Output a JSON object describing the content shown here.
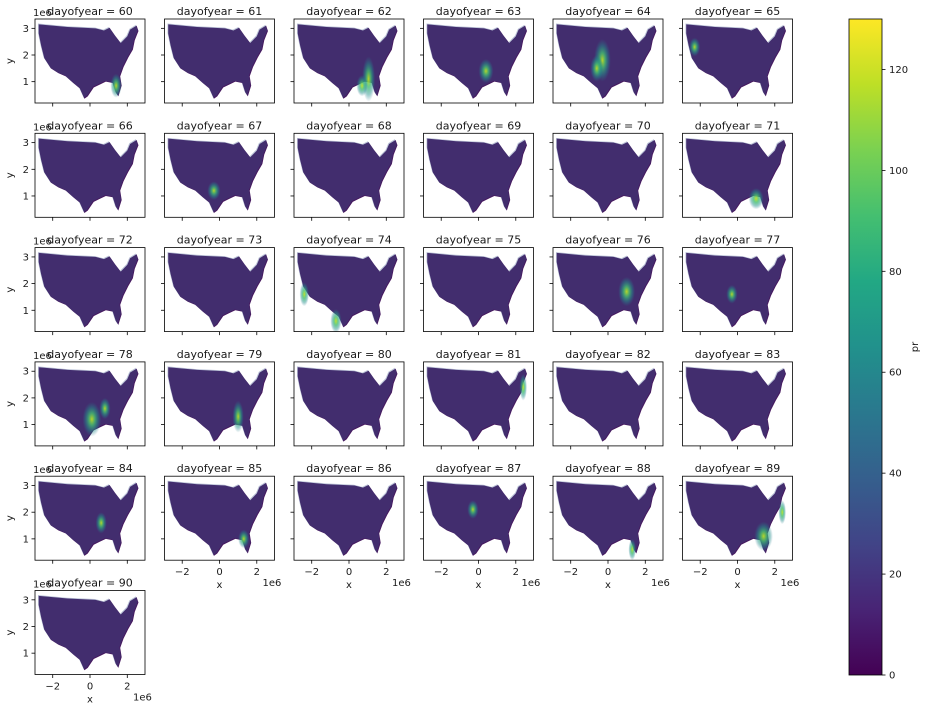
{
  "chart_data": {
    "type": "heatmap",
    "facet_variable": "dayofyear",
    "facet_title_format": "dayofyear = {v}",
    "panels": [
      60,
      61,
      62,
      63,
      64,
      65,
      66,
      67,
      68,
      69,
      70,
      71,
      72,
      73,
      74,
      75,
      76,
      77,
      78,
      79,
      80,
      81,
      82,
      83,
      84,
      85,
      86,
      87,
      88,
      89,
      90
    ],
    "columns": 6,
    "xlabel": "x",
    "ylabel": "y",
    "x_ticks": [
      -2,
      0,
      2
    ],
    "x_offset_label": "1e6",
    "x_range": [
      -2.95,
      2.95
    ],
    "y_ticks": [
      1,
      2,
      3
    ],
    "y_offset_label": "1e6",
    "y_range": [
      0.2,
      3.35
    ],
    "colorbar": {
      "label": "pr",
      "range": [
        0,
        130
      ],
      "ticks": [
        0,
        20,
        40,
        60,
        80,
        100,
        120
      ],
      "colormap": "viridis"
    },
    "highlights": {
      "60": [
        [
          1.4,
          0.85,
          0.3,
          0.45
        ]
      ],
      "62": [
        [
          1.05,
          1.1,
          0.35,
          0.85
        ],
        [
          0.7,
          0.85,
          0.3,
          0.4
        ]
      ],
      "63": [
        [
          0.4,
          1.4,
          0.4,
          0.45
        ]
      ],
      "64": [
        [
          -0.3,
          1.8,
          0.45,
          0.8
        ],
        [
          -0.6,
          1.5,
          0.35,
          0.5
        ]
      ],
      "65": [
        [
          -2.3,
          2.3,
          0.3,
          0.35
        ]
      ],
      "67": [
        [
          -0.3,
          1.2,
          0.35,
          0.35
        ]
      ],
      "71": [
        [
          1.0,
          0.9,
          0.4,
          0.4
        ]
      ],
      "74": [
        [
          -2.4,
          1.6,
          0.25,
          0.45
        ],
        [
          -0.7,
          0.6,
          0.3,
          0.45
        ]
      ],
      "76": [
        [
          1.0,
          1.7,
          0.45,
          0.55
        ]
      ],
      "77": [
        [
          -0.3,
          1.6,
          0.3,
          0.35
        ]
      ],
      "78": [
        [
          0.1,
          1.2,
          0.5,
          0.65
        ],
        [
          0.8,
          1.6,
          0.3,
          0.4
        ]
      ],
      "79": [
        [
          1.0,
          1.3,
          0.3,
          0.6
        ]
      ],
      "81": [
        [
          2.4,
          2.4,
          0.2,
          0.5
        ]
      ],
      "84": [
        [
          0.6,
          1.6,
          0.3,
          0.4
        ]
      ],
      "85": [
        [
          1.3,
          1.0,
          0.3,
          0.35
        ]
      ],
      "87": [
        [
          -0.3,
          2.1,
          0.3,
          0.35
        ]
      ],
      "88": [
        [
          1.3,
          0.6,
          0.2,
          0.4
        ]
      ],
      "89": [
        [
          1.4,
          1.1,
          0.5,
          0.55
        ],
        [
          2.4,
          2.0,
          0.2,
          0.45
        ]
      ]
    }
  }
}
